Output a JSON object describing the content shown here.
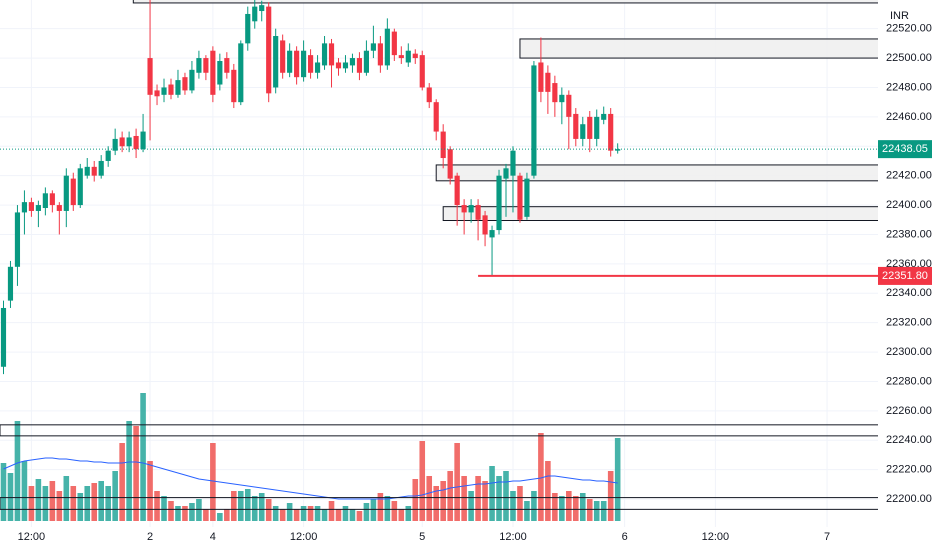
{
  "chart_data": {
    "type": "candlestick",
    "currency": "INR",
    "x": [
      0,
      1,
      2,
      3,
      4,
      5,
      6,
      7,
      8,
      9,
      10,
      11,
      12,
      13,
      14,
      15,
      16,
      17,
      18,
      19,
      20,
      21,
      22,
      23,
      24,
      25,
      26,
      27,
      28,
      29,
      30,
      31,
      32,
      33,
      34,
      35,
      36,
      37,
      38,
      39,
      40,
      41,
      42,
      43,
      44,
      45,
      46,
      47,
      48,
      49,
      50,
      51,
      52,
      53,
      54,
      55,
      56,
      57,
      58,
      59,
      60,
      61,
      62,
      63,
      64,
      65,
      66,
      67,
      68,
      69,
      70,
      71,
      72,
      73,
      74,
      75,
      76,
      77,
      78,
      79,
      80,
      81,
      82,
      83,
      84,
      85,
      86,
      87,
      88
    ],
    "open": [
      22290,
      22335,
      22358,
      22395,
      22402,
      22396,
      22398,
      22408,
      22400,
      22396,
      22418,
      22400,
      22420,
      22426,
      22420,
      22430,
      22437,
      22446,
      22440,
      22447,
      22438,
      22500,
      22478,
      22475,
      22482,
      22475,
      22487,
      22478,
      22490,
      22500,
      22505,
      22482,
      22500,
      22492,
      22470,
      22510,
      22525,
      22532,
      22535,
      22480,
      22512,
      22490,
      22505,
      22487,
      22502,
      22490,
      22495,
      22510,
      22497,
      22493,
      22495,
      22500,
      22490,
      22505,
      22510,
      22495,
      22518,
      22502,
      22497,
      22503,
      22502,
      22480,
      22470,
      22450,
      22438,
      22420,
      22400,
      22395,
      22400,
      22393,
      22378,
      22383,
      22418,
      22420,
      22420,
      22392,
      22420,
      22497,
      22490,
      22483,
      22470,
      22475,
      22462,
      22445,
      22460,
      22445,
      22458,
      22462,
      22437
    ],
    "high": [
      22335,
      22362,
      22400,
      22410,
      22405,
      22403,
      22412,
      22410,
      22402,
      22425,
      22422,
      22428,
      22432,
      22430,
      22434,
      22440,
      22452,
      22450,
      22450,
      22452,
      22462,
      22540,
      22482,
      22486,
      22486,
      22492,
      22490,
      22498,
      22505,
      22502,
      22508,
      22503,
      22504,
      22496,
      22512,
      22535,
      22540,
      22539,
      22538,
      22520,
      22516,
      22510,
      22508,
      22512,
      22506,
      22502,
      22515,
      22513,
      22500,
      22502,
      22503,
      22504,
      22512,
      22522,
      22515,
      22527,
      22520,
      22508,
      22510,
      22506,
      22505,
      22483,
      22472,
      22455,
      22440,
      22422,
      22404,
      22404,
      22404,
      22396,
      22386,
      22424,
      22428,
      22440,
      22422,
      22422,
      22498,
      22514,
      22495,
      22488,
      22480,
      22478,
      22466,
      22460,
      22464,
      22465,
      22467,
      22466,
      22442
    ],
    "low": [
      22285,
      22330,
      22345,
      22380,
      22392,
      22385,
      22393,
      22395,
      22380,
      22385,
      22396,
      22398,
      22418,
      22416,
      22418,
      22426,
      22434,
      22436,
      22436,
      22432,
      22436,
      22444,
      22468,
      22470,
      22472,
      22473,
      22475,
      22476,
      22486,
      22485,
      22470,
      22478,
      22486,
      22466,
      22468,
      22505,
      22520,
      22525,
      22470,
      22476,
      22486,
      22487,
      22482,
      22484,
      22486,
      22486,
      22492,
      22480,
      22488,
      22490,
      22490,
      22485,
      22488,
      22500,
      22490,
      22492,
      22498,
      22496,
      22494,
      22496,
      22478,
      22466,
      22444,
      22425,
      22414,
      22386,
      22380,
      22388,
      22376,
      22372,
      22352,
      22380,
      22392,
      22395,
      22388,
      22390,
      22418,
      22470,
      22462,
      22460,
      22455,
      22438,
      22440,
      22440,
      22436,
      22440,
      22455,
      22433,
      22435
    ],
    "close": [
      22330,
      22358,
      22395,
      22402,
      22396,
      22400,
      22408,
      22400,
      22396,
      22420,
      22400,
      22425,
      22426,
      22420,
      22430,
      22437,
      22445,
      22440,
      22446,
      22438,
      22450,
      22475,
      22474,
      22480,
      22475,
      22485,
      22478,
      22492,
      22500,
      22490,
      22475,
      22498,
      22490,
      22470,
      22510,
      22530,
      22535,
      22536,
      22476,
      22515,
      22490,
      22505,
      22487,
      22505,
      22490,
      22497,
      22510,
      22495,
      22493,
      22497,
      22500,
      22490,
      22505,
      22510,
      22495,
      22520,
      22502,
      22500,
      22505,
      22500,
      22480,
      22470,
      22450,
      22432,
      22418,
      22400,
      22395,
      22400,
      22390,
      22380,
      22383,
      22420,
      22425,
      22437,
      22390,
      22418,
      22495,
      22477,
      22477,
      22470,
      22475,
      22460,
      22445,
      22455,
      22445,
      22460,
      22462,
      22437,
      22438.05
    ],
    "volume": [
      58,
      48,
      100,
      60,
      35,
      42,
      35,
      40,
      30,
      45,
      35,
      28,
      35,
      38,
      40,
      35,
      50,
      78,
      100,
      95,
      128,
      60,
      30,
      25,
      20,
      15,
      15,
      18,
      22,
      12,
      78,
      8,
      12,
      30,
      30,
      32,
      25,
      28,
      22,
      15,
      12,
      18,
      12,
      15,
      15,
      15,
      12,
      20,
      12,
      15,
      12,
      10,
      18,
      22,
      28,
      25,
      20,
      12,
      15,
      42,
      80,
      45,
      35,
      40,
      50,
      78,
      45,
      30,
      45,
      40,
      55,
      45,
      50,
      30,
      35,
      20,
      30,
      88,
      60,
      28,
      25,
      30,
      25,
      28,
      22,
      20,
      20,
      50,
      83
    ],
    "volume_ma": [
      52,
      55,
      58,
      60,
      61,
      62,
      63,
      63,
      62,
      62,
      61,
      60,
      60,
      59,
      59,
      58,
      58,
      58,
      59,
      59,
      58,
      56,
      54,
      52,
      50,
      48,
      46,
      44,
      42,
      41,
      40,
      39,
      38,
      37,
      36,
      35,
      34,
      33,
      32,
      31,
      30,
      29,
      28,
      27,
      26,
      25,
      24,
      23,
      22,
      22,
      22,
      22,
      22,
      22,
      22,
      22,
      23,
      24,
      25,
      25,
      26,
      28,
      30,
      31,
      33,
      34,
      35,
      36,
      37,
      37,
      38,
      39,
      39,
      40,
      40,
      41,
      42,
      43,
      45,
      45,
      44,
      43,
      42,
      41,
      41,
      40,
      40,
      39,
      38
    ],
    "colors": {
      "up": "#089981",
      "down": "#f23645",
      "volume_up": "#26a69a",
      "volume_down": "#ef5350",
      "volume_ma": "#2962ff"
    },
    "xlim": [
      -0.5,
      125.3
    ],
    "xticks": [
      {
        "value": 4,
        "label": "12:00"
      },
      {
        "value": 21,
        "label": "2"
      },
      {
        "value": 30,
        "label": "4"
      },
      {
        "value": 43,
        "label": "12:00"
      },
      {
        "value": 60,
        "label": "5"
      },
      {
        "value": 73,
        "label": "12:00"
      },
      {
        "value": 89,
        "label": "6"
      },
      {
        "value": 102,
        "label": "12:00"
      },
      {
        "value": 118,
        "label": "7"
      }
    ],
    "ylim": [
      22181,
      22539.5
    ],
    "yticks": [
      {
        "value": 22200,
        "label": "22200.00"
      },
      {
        "value": 22220,
        "label": "22220.00"
      },
      {
        "value": 22240,
        "label": "22240.00"
      },
      {
        "value": 22260,
        "label": "22260.00"
      },
      {
        "value": 22280,
        "label": "22280.00"
      },
      {
        "value": 22300,
        "label": "22300.00"
      },
      {
        "value": 22320,
        "label": "22320.00"
      },
      {
        "value": 22340,
        "label": "22340.00"
      },
      {
        "value": 22360,
        "label": "22360.00"
      },
      {
        "value": 22380,
        "label": "22380.00"
      },
      {
        "value": 22400,
        "label": "22400.00"
      },
      {
        "value": 22420,
        "label": "22420.00"
      },
      {
        "value": 22440,
        "label": "22440.00"
      },
      {
        "value": 22460,
        "label": "22460.00"
      },
      {
        "value": 22480,
        "label": "22480.00"
      },
      {
        "value": 22500,
        "label": "22500.00"
      },
      {
        "value": 22520,
        "label": "22520.00"
      }
    ],
    "grid": true,
    "zones": [
      {
        "low": 22537.5,
        "high": 22545,
        "start": 18.6,
        "fill": "#f0f0f0"
      },
      {
        "low": 22500,
        "high": 22513,
        "start": 74,
        "fill": "#f0f0f0"
      },
      {
        "low": 22416.5,
        "high": 22427.3,
        "start": 62,
        "fill": "#f0f0f0"
      },
      {
        "low": 22389.5,
        "high": 22398.9,
        "start": 63,
        "fill": "#f0f0f0"
      },
      {
        "low": 22243,
        "high": 22250.5,
        "start": -0.5,
        "fill": "none"
      },
      {
        "low": 22193,
        "high": 22201,
        "start": -0.5,
        "fill": "none"
      }
    ],
    "price_lines": [
      {
        "value": 22438.05,
        "label": "22438.05",
        "color": "#089981",
        "start": -0.5,
        "style": "dotted"
      },
      {
        "value": 22351.8,
        "label": "22351.80",
        "color": "#f23645",
        "start": 68,
        "style": "solid"
      }
    ]
  }
}
